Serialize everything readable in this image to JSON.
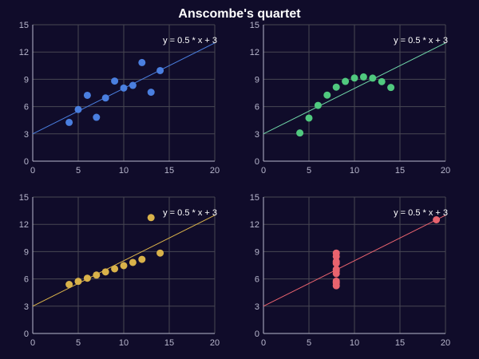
{
  "chart_data": {
    "type": "scatter",
    "title": "Anscombe's quartet",
    "xlim": [
      0,
      20
    ],
    "ylim": [
      0,
      15
    ],
    "x_ticks": [
      0,
      5,
      10,
      15,
      20
    ],
    "y_ticks": [
      0,
      3,
      6,
      9,
      12,
      15
    ],
    "grid": true,
    "layout": "2x2",
    "fit_line": {
      "label": "y = 0.5 * x + 3",
      "slope": 0.5,
      "intercept": 3,
      "x_range": [
        0,
        20
      ]
    },
    "panels": [
      {
        "id": "I",
        "color": "#4a7fe0",
        "line_color": "#4a7fe0",
        "points": [
          [
            10,
            8.04
          ],
          [
            8,
            6.95
          ],
          [
            13,
            7.58
          ],
          [
            9,
            8.81
          ],
          [
            11,
            8.33
          ],
          [
            14,
            9.96
          ],
          [
            6,
            7.24
          ],
          [
            4,
            4.26
          ],
          [
            12,
            10.84
          ],
          [
            7,
            4.82
          ],
          [
            5,
            5.68
          ]
        ]
      },
      {
        "id": "II",
        "color": "#50c97f",
        "line_color": "#6fd6a8",
        "points": [
          [
            10,
            9.14
          ],
          [
            8,
            8.14
          ],
          [
            13,
            8.74
          ],
          [
            9,
            8.77
          ],
          [
            11,
            9.26
          ],
          [
            14,
            8.1
          ],
          [
            6,
            6.13
          ],
          [
            4,
            3.1
          ],
          [
            12,
            9.13
          ],
          [
            7,
            7.26
          ],
          [
            5,
            4.74
          ]
        ]
      },
      {
        "id": "III",
        "color": "#d9b24a",
        "line_color": "#d9b24a",
        "points": [
          [
            10,
            7.46
          ],
          [
            8,
            6.77
          ],
          [
            13,
            12.74
          ],
          [
            9,
            7.11
          ],
          [
            11,
            7.81
          ],
          [
            14,
            8.84
          ],
          [
            6,
            6.08
          ],
          [
            4,
            5.39
          ],
          [
            12,
            8.15
          ],
          [
            7,
            6.42
          ],
          [
            5,
            5.73
          ]
        ]
      },
      {
        "id": "IV",
        "color": "#e8636e",
        "line_color": "#e8636e",
        "points": [
          [
            8,
            6.58
          ],
          [
            8,
            5.76
          ],
          [
            8,
            7.71
          ],
          [
            8,
            8.84
          ],
          [
            8,
            8.47
          ],
          [
            8,
            7.04
          ],
          [
            8,
            5.25
          ],
          [
            19,
            12.5
          ],
          [
            8,
            5.56
          ],
          [
            8,
            7.91
          ],
          [
            8,
            6.89
          ]
        ]
      }
    ]
  },
  "style": {
    "background": "#100c2a",
    "axis_color": "#b9b8ce",
    "grid_color": "#484753",
    "text_color": "#ffffff"
  }
}
